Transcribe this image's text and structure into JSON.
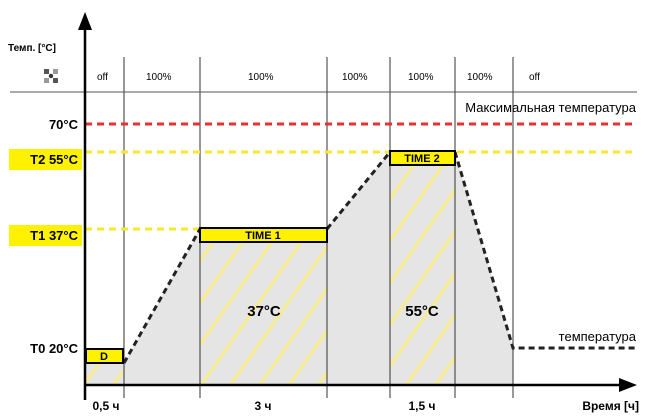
{
  "axes": {
    "y_label": "Темп. [°C]",
    "x_label": "Время [ч]"
  },
  "fan_row": {
    "icon": "fan-icon",
    "segments": [
      "off",
      "100%",
      "100%",
      "100%",
      "100%",
      "100%",
      "off"
    ]
  },
  "temperature_labels": {
    "max": "70°C",
    "t2": "T2 55°C",
    "t1": "T1 37°C",
    "t0": "T0 20°C"
  },
  "annotations": {
    "max_temperature": "Максимальная температура",
    "temperature": "температура",
    "d": "D",
    "time1": "TIME 1",
    "time2": "TIME 2",
    "area1_temp": "37°C",
    "area2_temp": "55°C"
  },
  "durations": [
    "0,5 ч",
    "3 ч",
    "1,5 ч"
  ],
  "colors": {
    "max_line": "#e53131",
    "threshold_line": "#f7e731",
    "highlight": "#fff200",
    "area_fill": "#e5e5e5",
    "hatch": "#f8ec8f"
  }
}
